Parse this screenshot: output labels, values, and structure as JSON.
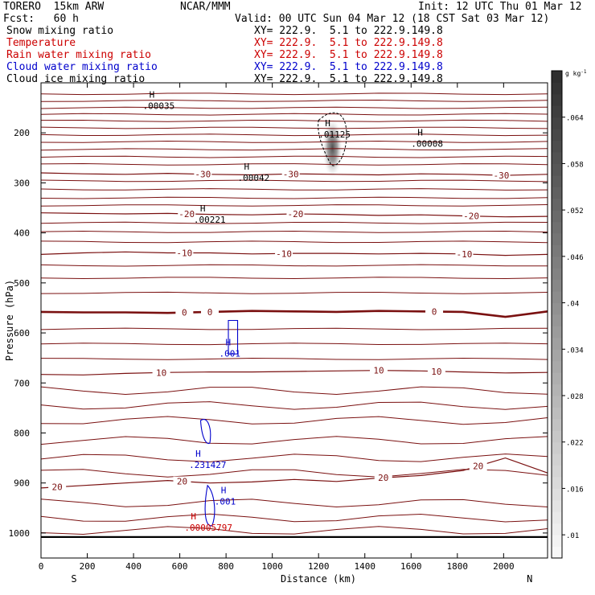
{
  "header": {
    "model": "TORERO  15km ARW",
    "center": "NCAR/MMM",
    "init": "Init: 12 UTC Thu 01 Mar 12",
    "fcst": "Fcst:   60 h",
    "valid": "Valid: 00 UTC Sun 04 Mar 12 (18 CST Sat 03 Mar 12)"
  },
  "legend": [
    {
      "label": "Snow mixing ratio",
      "xs": "XY= 222.9.  5.1 to 222.9.149.8",
      "color": "#000000",
      "xs_color": "#000000"
    },
    {
      "label": "Temperature",
      "xs": "XY= 222.9.  5.1 to 222.9.149.8",
      "color": "#cc0000",
      "xs_color": "#cc0000"
    },
    {
      "label": "Rain water mixing ratio",
      "xs": "XY= 222.9.  5.1 to 222.9.149.8",
      "color": "#cc0000",
      "xs_color": "#cc0000"
    },
    {
      "label": "Cloud water mixing ratio",
      "xs": "XY= 222.9.  5.1 to 222.9.149.8",
      "color": "#0000cc",
      "xs_color": "#0000cc"
    },
    {
      "label": "Cloud ice mixing ratio",
      "xs": "XY= 222.9.  5.1 to 222.9.149.8",
      "color": "#000000",
      "xs_color": "#000000"
    }
  ],
  "chart_data": {
    "type": "cross-section contour",
    "xlabel": "Distance (km)",
    "ylabel": "Pressure (hPa)",
    "xlim": [
      0,
      2190
    ],
    "ylim": [
      1050,
      100
    ],
    "x_ticks": [
      0,
      200,
      400,
      600,
      800,
      1000,
      1200,
      1400,
      1600,
      1800,
      2000
    ],
    "y_ticks": [
      200,
      300,
      400,
      500,
      600,
      700,
      800,
      900,
      1000
    ],
    "x_tick_labels": [
      "0",
      "200",
      "400",
      "600",
      "800",
      "1000",
      "1200",
      "1400",
      "1600",
      "1800",
      "2000"
    ],
    "y_tick_labels": [
      "200",
      "300",
      "400",
      "500",
      "600",
      "700",
      "800",
      "900",
      "1000"
    ],
    "left_end_label": "S",
    "right_end_label": "N",
    "ground_pressure_hPa": 1008,
    "temperature_isotherms": [
      {
        "label": "-30",
        "p": [
          280,
          282,
          283,
          281,
          283,
          284,
          282,
          283,
          284,
          282,
          283,
          285,
          283
        ],
        "lbl": [
          {
            "x": 700,
            "p": 282
          },
          {
            "x": 1080,
            "p": 282
          },
          {
            "x": 1990,
            "p": 290
          }
        ]
      },
      {
        "label": "-20",
        "p": [
          360,
          361,
          362,
          361,
          363,
          364,
          362,
          363,
          365,
          364,
          366,
          368,
          367
        ],
        "lbl": [
          {
            "x": 630,
            "p": 362
          },
          {
            "x": 1100,
            "p": 362
          },
          {
            "x": 1860,
            "p": 370
          }
        ]
      },
      {
        "label": "-10",
        "p": [
          443,
          440,
          438,
          440,
          440,
          442,
          441,
          441,
          442,
          441,
          442,
          445,
          443
        ],
        "lbl": [
          {
            "x": 620,
            "p": 440
          },
          {
            "x": 1050,
            "p": 441
          },
          {
            "x": 1830,
            "p": 445
          }
        ]
      },
      {
        "label": "0",
        "p": [
          558,
          559,
          559,
          560,
          558,
          556,
          557,
          558,
          556,
          557,
          558,
          568,
          557
        ],
        "lbl": [
          {
            "x": 620,
            "p": 559
          },
          {
            "x": 730,
            "p": 558
          },
          {
            "x": 1700,
            "p": 562
          }
        ]
      },
      {
        "label": "10",
        "p": [
          683,
          684,
          681,
          679,
          678,
          678,
          677,
          676,
          675,
          676,
          678,
          680,
          679
        ],
        "lbl": [
          {
            "x": 520,
            "p": 682
          },
          {
            "x": 1460,
            "p": 677
          },
          {
            "x": 1710,
            "p": 680
          }
        ]
      },
      {
        "label": "20",
        "p": [
          910,
          905,
          900,
          895,
          900,
          898,
          893,
          897,
          890,
          885,
          875,
          850,
          880
        ],
        "lbl": [
          {
            "x": 70,
            "p": 910
          },
          {
            "x": 610,
            "p": 907
          },
          {
            "x": 1480,
            "p": 893
          },
          {
            "x": 1890,
            "p": 880
          }
        ]
      }
    ],
    "temperature_unlabeled_levels": [
      122,
      136,
      150,
      163,
      176,
      190,
      204,
      218,
      233,
      248,
      263,
      296,
      313,
      330,
      345,
      380,
      398,
      418,
      465,
      490,
      520,
      592,
      622,
      652,
      715,
      745,
      775,
      815,
      850,
      880,
      940,
      970,
      995
    ],
    "maxima_labels": [
      {
        "text": ".00035",
        "x": 440,
        "p": 152,
        "color": "#000000"
      },
      {
        "text": ".01125",
        "x": 1200,
        "p": 209,
        "color": "#000000"
      },
      {
        "text": ".00008",
        "x": 1600,
        "p": 228,
        "color": "#000000"
      },
      {
        "text": ".00042",
        "x": 850,
        "p": 296,
        "color": "#000000"
      },
      {
        "text": ".00221",
        "x": 660,
        "p": 380,
        "color": "#000000"
      },
      {
        "text": ".001",
        "x": 770,
        "p": 647,
        "color": "#0000cc"
      },
      {
        "text": ".231427",
        "x": 640,
        "p": 870,
        "color": "#0000cc"
      },
      {
        "text": ".001",
        "x": 750,
        "p": 943,
        "color": "#0000cc"
      },
      {
        "text": ".00005797",
        "x": 620,
        "p": 995,
        "color": "#cc0000"
      }
    ],
    "snow_shading": {
      "x": 1260,
      "p": 230,
      "peak": 0.066
    },
    "colorbar": {
      "units": "g kg",
      "ticks": [
        0.01,
        0.016,
        0.022,
        0.028,
        0.034,
        0.04,
        0.046,
        0.052,
        0.058,
        0.064
      ],
      "tick_labels": [
        ".01",
        ".016",
        ".022",
        ".028",
        ".034",
        ".04",
        ".046",
        ".052",
        ".058",
        ".064"
      ],
      "range": [
        0.007,
        0.07
      ]
    }
  }
}
